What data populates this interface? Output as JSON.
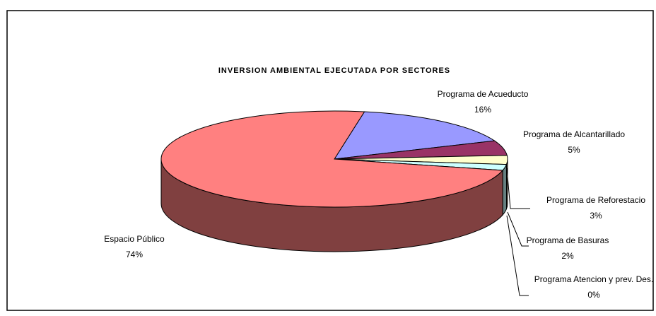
{
  "chart_data": {
    "type": "pie3d",
    "title": "INVERSION AMBIENTAL EJECUTADA POR SECTORES",
    "categories": [
      "Programa de Acueducto",
      "Programa de Alcantarillado",
      "Programa de Reforestacio",
      "Programa de Basuras",
      "Programa Atencion y prev. Des.",
      "Espacio Público"
    ],
    "values": [
      16,
      5,
      3,
      2,
      0,
      74
    ],
    "value_labels": [
      "16%",
      "5%",
      "3%",
      "2%",
      "0%",
      "74%"
    ],
    "colors": [
      "#9999ff",
      "#993366",
      "#ffffcc",
      "#ccffff",
      "#660066",
      "#ff8080"
    ]
  }
}
